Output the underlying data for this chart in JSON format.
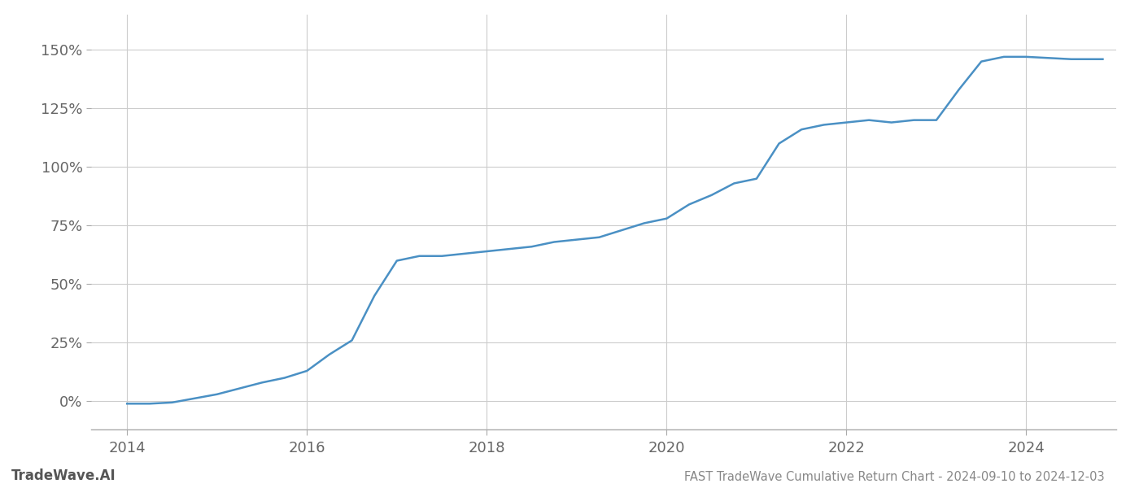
{
  "title": "FAST TradeWave Cumulative Return Chart - 2024-09-10 to 2024-12-03",
  "watermark": "TradeWave.AI",
  "line_color": "#4a90c4",
  "line_width": 1.8,
  "background_color": "#ffffff",
  "grid_color": "#cccccc",
  "x_years": [
    2014.0,
    2014.25,
    2014.5,
    2015.0,
    2015.5,
    2015.75,
    2016.0,
    2016.25,
    2016.5,
    2016.75,
    2017.0,
    2017.25,
    2017.5,
    2017.75,
    2018.0,
    2018.25,
    2018.5,
    2018.75,
    2019.0,
    2019.25,
    2019.5,
    2019.75,
    2020.0,
    2020.25,
    2020.5,
    2020.75,
    2021.0,
    2021.25,
    2021.5,
    2021.75,
    2022.0,
    2022.25,
    2022.5,
    2022.75,
    2023.0,
    2023.25,
    2023.5,
    2023.75,
    2024.0,
    2024.5,
    2024.85
  ],
  "y_values": [
    -1,
    -1,
    -0.5,
    3,
    8,
    10,
    13,
    20,
    26,
    45,
    60,
    62,
    62,
    63,
    64,
    65,
    66,
    68,
    69,
    70,
    73,
    76,
    78,
    84,
    88,
    93,
    95,
    110,
    116,
    118,
    119,
    120,
    119,
    120,
    120,
    133,
    145,
    147,
    147,
    146,
    146
  ],
  "xlim": [
    2013.6,
    2025.0
  ],
  "ylim": [
    -12,
    165
  ],
  "yticks": [
    0,
    25,
    50,
    75,
    100,
    125,
    150
  ],
  "xticks": [
    2014,
    2016,
    2018,
    2020,
    2022,
    2024
  ],
  "tick_fontsize": 13,
  "title_fontsize": 10.5,
  "watermark_fontsize": 12
}
